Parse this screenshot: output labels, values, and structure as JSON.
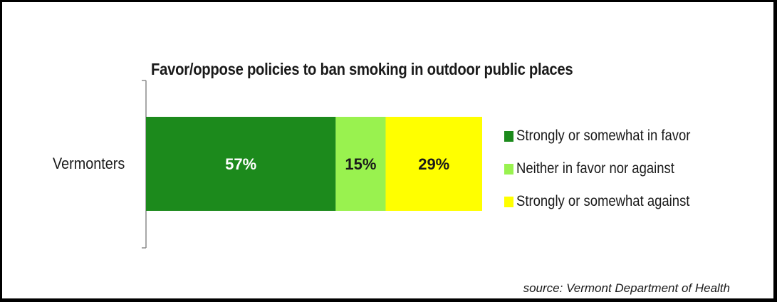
{
  "chart_data": {
    "type": "bar",
    "orientation": "horizontal",
    "stacked": true,
    "title": "Favor/oppose policies to ban smoking in outdoor public places",
    "categories": [
      "Vermonters"
    ],
    "series": [
      {
        "name": "Strongly or somewhat in favor",
        "values": [
          57
        ],
        "label": "57%",
        "color": "#1c8a1c"
      },
      {
        "name": "Neither in favor nor against",
        "values": [
          15
        ],
        "label": "15%",
        "color": "#99f24f"
      },
      {
        "name": "Strongly or somewhat against",
        "values": [
          29
        ],
        "label": "29%",
        "color": "#ffff00"
      }
    ],
    "legend_position": "right",
    "grid": false,
    "xlim": [
      0,
      101
    ]
  },
  "source": "source: Vermont Department of Health"
}
